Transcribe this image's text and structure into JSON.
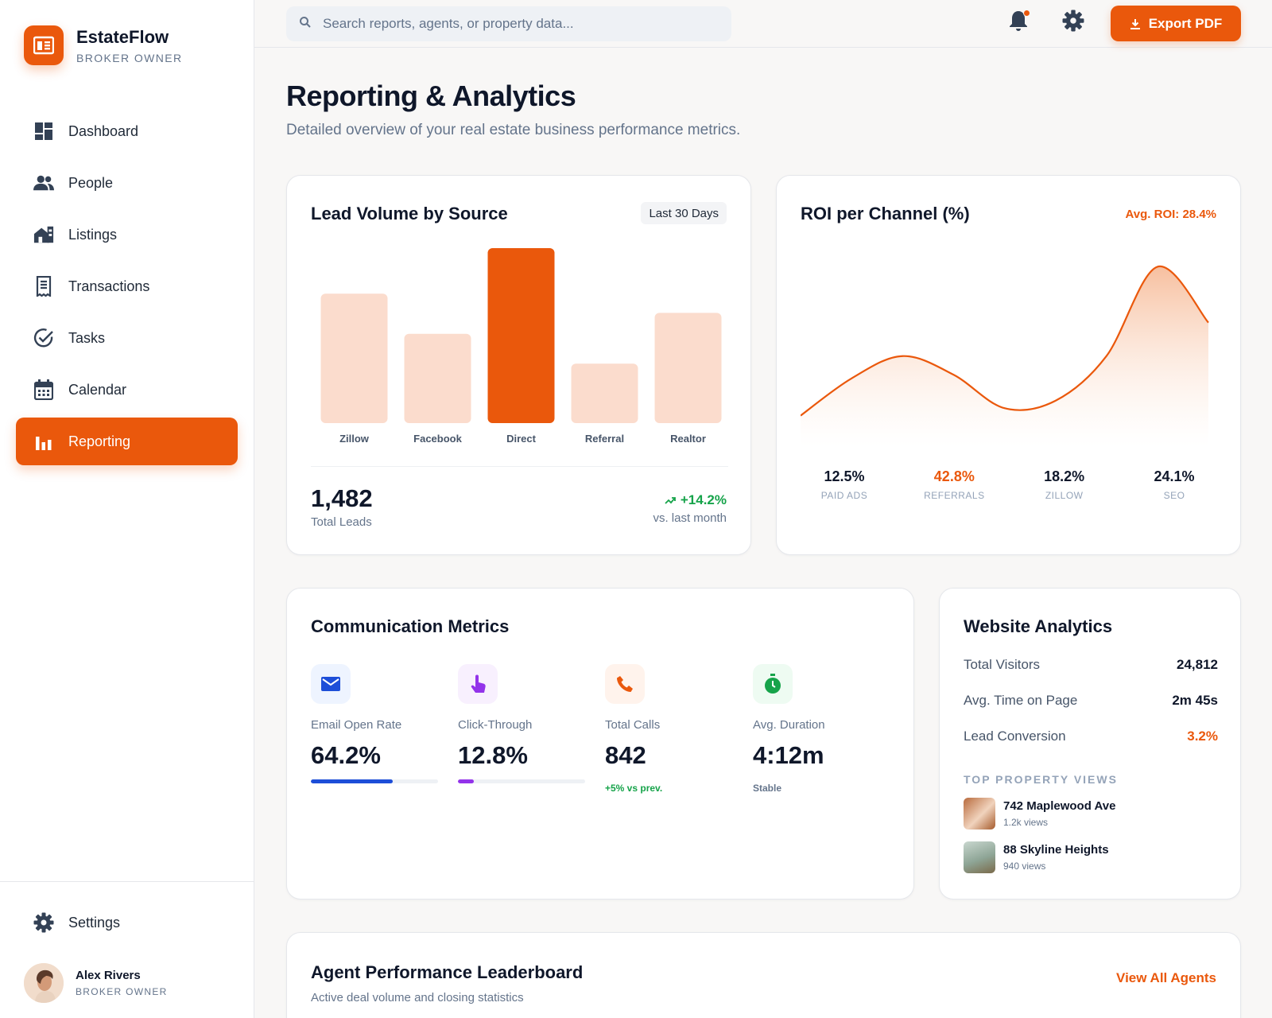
{
  "brand": {
    "name": "EstateFlow",
    "role": "BROKER OWNER"
  },
  "nav": {
    "items": [
      {
        "label": "Dashboard",
        "icon": "dashboard-icon"
      },
      {
        "label": "People",
        "icon": "people-icon"
      },
      {
        "label": "Listings",
        "icon": "listings-icon"
      },
      {
        "label": "Transactions",
        "icon": "receipt-icon"
      },
      {
        "label": "Tasks",
        "icon": "check-circle-icon"
      },
      {
        "label": "Calendar",
        "icon": "calendar-icon"
      },
      {
        "label": "Reporting",
        "icon": "bar-chart-icon",
        "active": true
      }
    ],
    "settings_label": "Settings"
  },
  "user": {
    "name": "Alex Rivers",
    "role": "BROKER OWNER"
  },
  "topbar": {
    "search_placeholder": "Search reports, agents, or property data...",
    "export_label": "Export PDF"
  },
  "page": {
    "title": "Reporting & Analytics",
    "subtitle": "Detailed overview of your real estate business performance metrics."
  },
  "lead_volume": {
    "title": "Lead Volume by Source",
    "range": "Last 30 Days",
    "total": "1,482",
    "total_label": "Total Leads",
    "change": "+14.2%",
    "change_label": "vs. last month"
  },
  "roi": {
    "title": "ROI per Channel (%)",
    "avg": "Avg. ROI: 28.4%",
    "stats": [
      {
        "value": "12.5%",
        "label": "PAID ADS"
      },
      {
        "value": "42.8%",
        "label": "REFERRALS",
        "highlight": true
      },
      {
        "value": "18.2%",
        "label": "ZILLOW"
      },
      {
        "value": "24.1%",
        "label": "SEO"
      }
    ]
  },
  "communication": {
    "title": "Communication Metrics",
    "metrics": [
      {
        "label": "Email Open Rate",
        "value": "64.2%",
        "progress": 0.642,
        "icon": "mail-icon",
        "color": "#1d4ed8"
      },
      {
        "label": "Click-Through",
        "value": "12.8%",
        "progress": 0.128,
        "icon": "pointer-icon",
        "color": "#9333ea"
      },
      {
        "label": "Total Calls",
        "value": "842",
        "note": "+5% vs prev.",
        "icon": "phone-icon",
        "color": "#ea580c"
      },
      {
        "label": "Avg. Duration",
        "value": "4:12m",
        "note": "Stable",
        "icon": "stopwatch-icon",
        "color": "#16a34a"
      }
    ]
  },
  "website": {
    "title": "Website Analytics",
    "rows": [
      {
        "label": "Total Visitors",
        "value": "24,812"
      },
      {
        "label": "Avg. Time on Page",
        "value": "2m 45s"
      },
      {
        "label": "Lead Conversion",
        "value": "3.2%",
        "highlight": true
      }
    ],
    "top_views_label": "TOP PROPERTY VIEWS",
    "properties": [
      {
        "name": "742 Maplewood Ave",
        "views": "1.2k views"
      },
      {
        "name": "88 Skyline Heights",
        "views": "940 views"
      }
    ]
  },
  "leaderboard": {
    "title": "Agent Performance Leaderboard",
    "subtitle": "Active deal volume and closing statistics",
    "view_all": "View All Agents"
  },
  "colors": {
    "accent": "#ea580c",
    "accent_light": "#fbdccd",
    "positive": "#16a34a"
  },
  "chart_data": [
    {
      "type": "bar",
      "title": "Lead Volume by Source",
      "categories": [
        "Zillow",
        "Facebook",
        "Direct",
        "Referral",
        "Realtor"
      ],
      "values": [
        74,
        51,
        100,
        34,
        63
      ],
      "highlight_category": "Direct",
      "ylim": [
        0,
        100
      ]
    },
    {
      "type": "area",
      "title": "ROI per Channel (%)",
      "x": [
        0,
        1,
        2,
        3,
        4,
        5,
        6,
        7,
        8
      ],
      "values": [
        10,
        30,
        42,
        32,
        14,
        18,
        42,
        90,
        60
      ],
      "ylim": [
        0,
        100
      ]
    }
  ]
}
